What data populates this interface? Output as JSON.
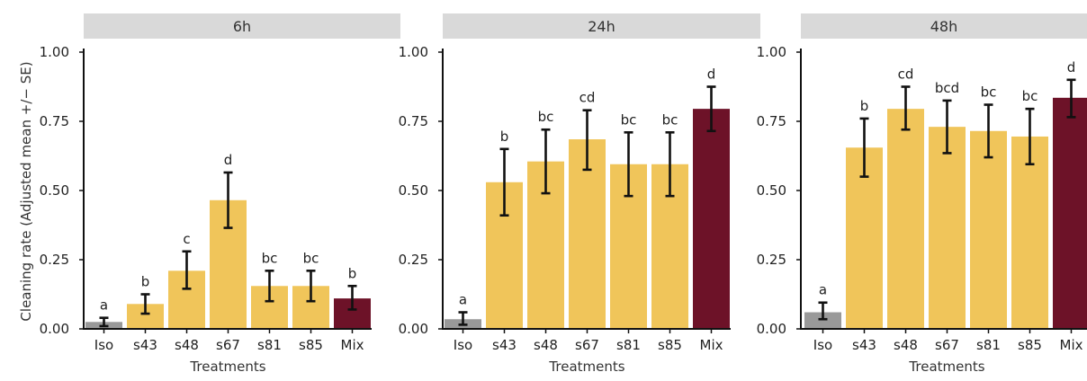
{
  "chart_data": [
    {
      "type": "bar",
      "panel_title": "6h",
      "categories": [
        "Iso",
        "s43",
        "s48",
        "s67",
        "s81",
        "s85",
        "Mix"
      ],
      "values": [
        0.025,
        0.09,
        0.21,
        0.465,
        0.155,
        0.155,
        0.11
      ],
      "error_low": [
        0.01,
        0.055,
        0.145,
        0.365,
        0.1,
        0.1,
        0.07
      ],
      "error_high": [
        0.04,
        0.125,
        0.28,
        0.565,
        0.21,
        0.21,
        0.155
      ],
      "letters": [
        "a",
        "b",
        "c",
        "d",
        "bc",
        "bc",
        "b"
      ],
      "ylim": [
        0,
        1
      ],
      "yticks": [
        "0.00",
        "0.25",
        "0.50",
        "0.75",
        "1.00"
      ],
      "xlabel": "Treatments",
      "ylabel": "Cleaning rate (Adjusted mean +/− SE)"
    },
    {
      "type": "bar",
      "panel_title": "24h",
      "categories": [
        "Iso",
        "s43",
        "s48",
        "s67",
        "s81",
        "s85",
        "Mix"
      ],
      "values": [
        0.035,
        0.53,
        0.605,
        0.685,
        0.595,
        0.595,
        0.795
      ],
      "error_low": [
        0.015,
        0.41,
        0.49,
        0.575,
        0.48,
        0.48,
        0.715
      ],
      "error_high": [
        0.06,
        0.65,
        0.72,
        0.79,
        0.71,
        0.71,
        0.875
      ],
      "letters": [
        "a",
        "b",
        "bc",
        "cd",
        "bc",
        "bc",
        "d"
      ],
      "ylim": [
        0,
        1
      ],
      "yticks": [
        "0.00",
        "0.25",
        "0.50",
        "0.75",
        "1.00"
      ],
      "xlabel": "Treatments",
      "ylabel": ""
    },
    {
      "type": "bar",
      "panel_title": "48h",
      "categories": [
        "Iso",
        "s43",
        "s48",
        "s67",
        "s81",
        "s85",
        "Mix"
      ],
      "values": [
        0.06,
        0.655,
        0.795,
        0.73,
        0.715,
        0.695,
        0.835
      ],
      "error_low": [
        0.035,
        0.55,
        0.72,
        0.635,
        0.62,
        0.595,
        0.765
      ],
      "error_high": [
        0.095,
        0.76,
        0.875,
        0.825,
        0.81,
        0.795,
        0.9
      ],
      "letters": [
        "a",
        "b",
        "cd",
        "bcd",
        "bc",
        "bc",
        "d"
      ],
      "ylim": [
        0,
        1
      ],
      "yticks": [
        "0.00",
        "0.25",
        "0.50",
        "0.75",
        "1.00"
      ],
      "xlabel": "Treatments",
      "ylabel": ""
    }
  ],
  "colors": {
    "Iso": "#999999",
    "strain": "#f0c55a",
    "Mix": "#6d1228"
  }
}
